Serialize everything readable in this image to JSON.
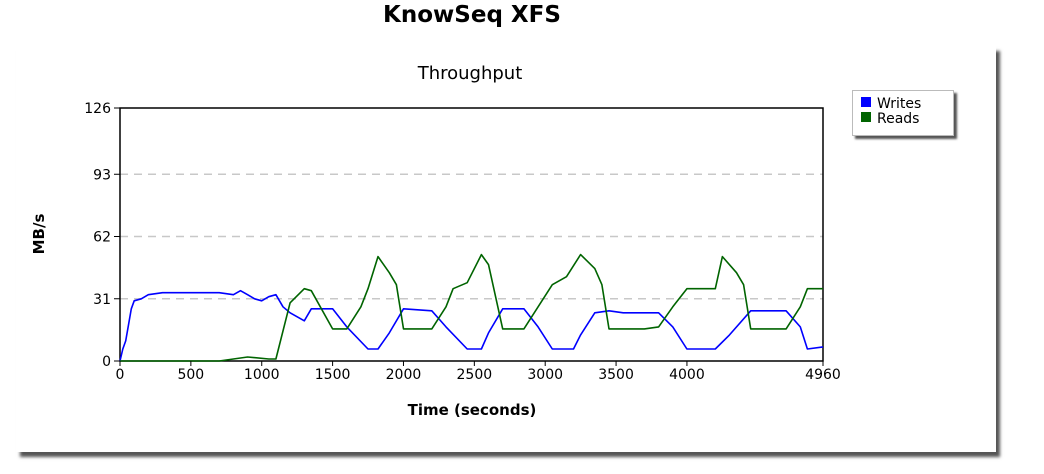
{
  "page": {
    "title": "KnowSeq XFS"
  },
  "chart_data": {
    "type": "line",
    "title": "Throughput",
    "xlabel": "Time (seconds)",
    "ylabel": "MB/s",
    "xlim": [
      0,
      4960
    ],
    "ylim": [
      0,
      126
    ],
    "xticks": [
      0,
      500,
      1000,
      1500,
      2000,
      2500,
      3000,
      3500,
      4000,
      4960
    ],
    "yticks": [
      0,
      31,
      62,
      93,
      126
    ],
    "grid": "horizontal-dashed",
    "legend_position": "right",
    "series": [
      {
        "name": "Writes",
        "color": "#0000ff",
        "x": [
          0,
          20,
          40,
          60,
          80,
          100,
          150,
          200,
          300,
          400,
          500,
          600,
          700,
          800,
          850,
          900,
          950,
          1000,
          1050,
          1100,
          1150,
          1200,
          1250,
          1300,
          1350,
          1500,
          1600,
          1750,
          1820,
          1900,
          2000,
          2200,
          2300,
          2450,
          2550,
          2600,
          2700,
          2850,
          2950,
          3050,
          3200,
          3250,
          3350,
          3450,
          3550,
          3700,
          3800,
          3900,
          4000,
          4200,
          4300,
          4450,
          4700,
          4800,
          4850,
          4960
        ],
        "y": [
          0,
          6,
          10,
          18,
          26,
          30,
          31,
          33,
          34,
          34,
          34,
          34,
          34,
          33,
          35,
          33,
          31,
          30,
          32,
          33,
          27,
          24,
          22,
          20,
          26,
          26,
          17,
          6,
          6,
          14,
          26,
          25,
          17,
          6,
          6,
          14,
          26,
          26,
          17,
          6,
          6,
          13,
          24,
          25,
          24,
          24,
          24,
          17,
          6,
          6,
          13,
          25,
          25,
          17,
          6,
          7
        ]
      },
      {
        "name": "Reads",
        "color": "#006400",
        "x": [
          0,
          20,
          100,
          300,
          500,
          700,
          800,
          900,
          1050,
          1100,
          1200,
          1300,
          1350,
          1500,
          1600,
          1700,
          1750,
          1820,
          1900,
          1950,
          2000,
          2200,
          2300,
          2350,
          2450,
          2550,
          2600,
          2700,
          2850,
          2950,
          3050,
          3150,
          3250,
          3350,
          3400,
          3450,
          3700,
          3800,
          3900,
          4000,
          4100,
          4200,
          4250,
          4350,
          4400,
          4450,
          4650,
          4700,
          4800,
          4850,
          4960
        ],
        "y": [
          0,
          0,
          0,
          0,
          0,
          0,
          1,
          2,
          1,
          1,
          29,
          36,
          35,
          16,
          16,
          27,
          36,
          52,
          44,
          38,
          16,
          16,
          27,
          36,
          39,
          53,
          48,
          16,
          16,
          27,
          38,
          42,
          53,
          46,
          38,
          16,
          16,
          17,
          27,
          36,
          36,
          36,
          52,
          44,
          38,
          16,
          16,
          16,
          27,
          36,
          36
        ]
      }
    ]
  }
}
